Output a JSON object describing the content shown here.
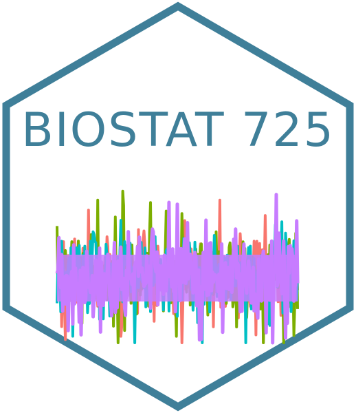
{
  "logo": {
    "title": "BIOSTAT 725",
    "colors": {
      "border": "#3f7f99",
      "title": "#3f7f99",
      "background": "#ffffff",
      "series": [
        "#f8766d",
        "#7cae00",
        "#00bfc4",
        "#c77cff"
      ]
    },
    "graphic": "hex-sticker-noise-traces-icon"
  }
}
